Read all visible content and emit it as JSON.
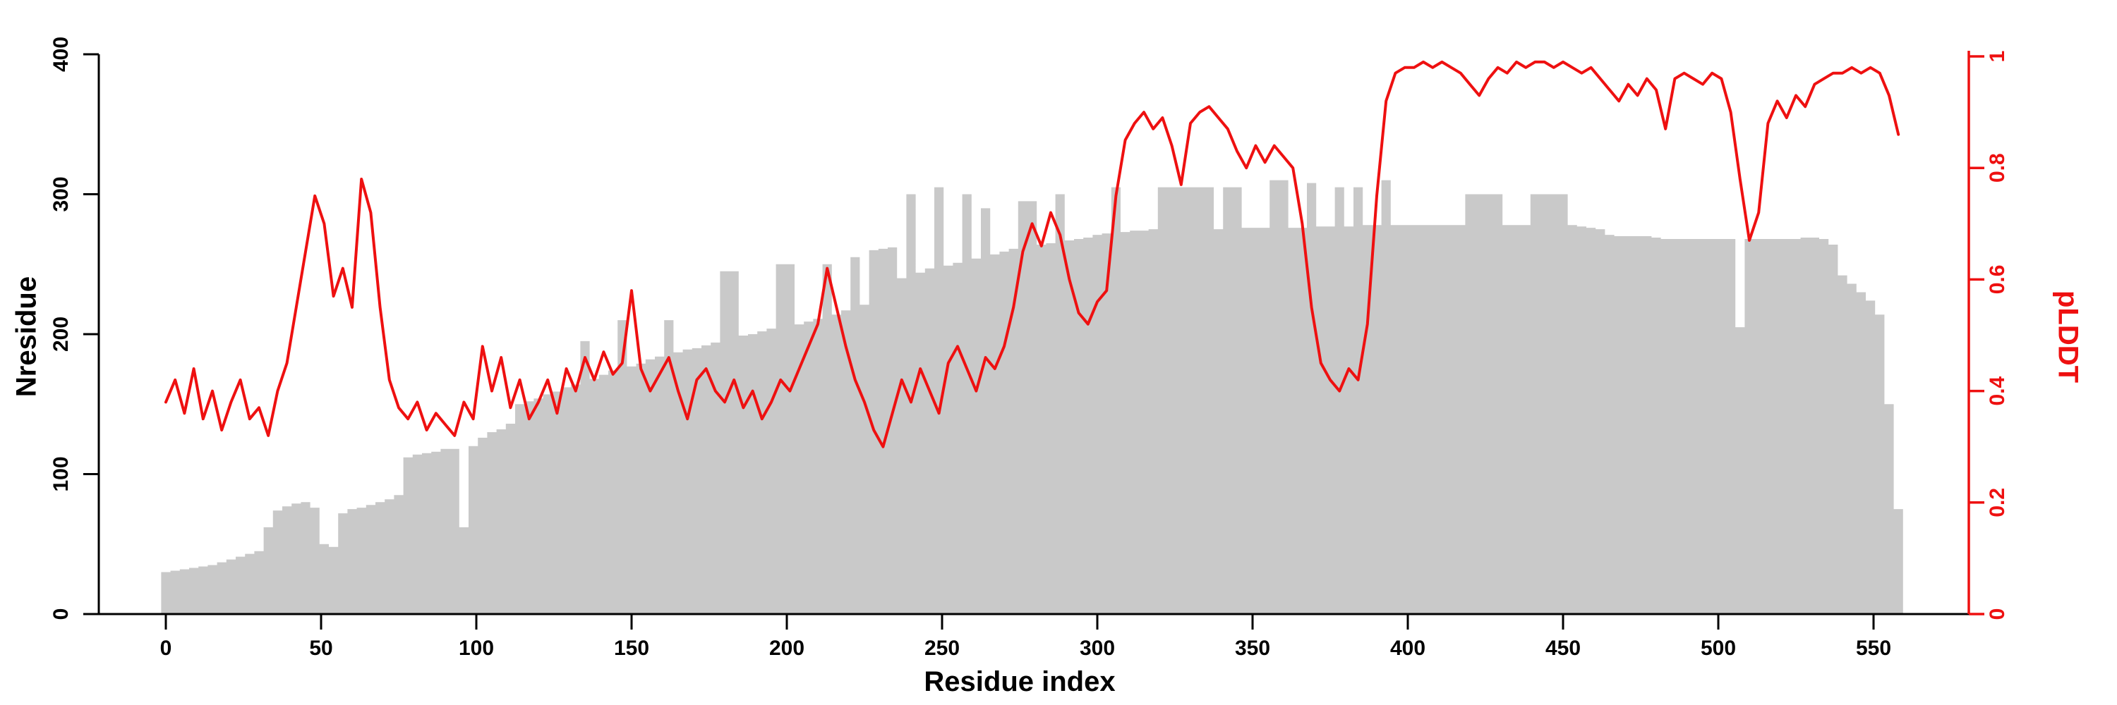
{
  "figure": {
    "background_color": "#ffffff",
    "bar_color": "#c9c9c9",
    "line_color": "#ee1010",
    "axis_color": "#000000",
    "right_axis_color": "#ee1010"
  },
  "chart_data": {
    "type": "bar+line",
    "title": "",
    "xlabel": "Residue index",
    "ylabel_left": "Nresidue",
    "ylabel_right": "pLDDT",
    "xlim": [
      0,
      558
    ],
    "ylim_left": [
      0,
      400
    ],
    "ylim_right": [
      0,
      1
    ],
    "grid": false,
    "legend": "none",
    "xticks": [
      0,
      50,
      100,
      150,
      200,
      250,
      300,
      350,
      400,
      450,
      500,
      550
    ],
    "xtick_labels": [
      "0",
      "50",
      "100",
      "150",
      "200",
      "250",
      "300",
      "350",
      "400",
      "450",
      "500",
      "550"
    ],
    "yticks_left": [
      0,
      100,
      200,
      300,
      400
    ],
    "ytick_labels_left": [
      "0",
      "100",
      "200",
      "300",
      "400"
    ],
    "yticks_right": [
      0,
      0.2,
      0.4,
      0.6,
      0.8,
      1
    ],
    "ytick_labels_right": [
      "0",
      "0.2",
      "0.4",
      "0.6",
      "0.8",
      "1"
    ],
    "x": [
      0,
      3,
      6,
      9,
      12,
      15,
      18,
      21,
      24,
      27,
      30,
      33,
      36,
      39,
      42,
      45,
      48,
      51,
      54,
      57,
      60,
      63,
      66,
      69,
      72,
      75,
      78,
      81,
      84,
      87,
      90,
      93,
      96,
      99,
      102,
      105,
      108,
      111,
      114,
      117,
      120,
      123,
      126,
      129,
      132,
      135,
      138,
      141,
      144,
      147,
      150,
      153,
      156,
      159,
      162,
      165,
      168,
      171,
      174,
      177,
      180,
      183,
      186,
      189,
      192,
      195,
      198,
      201,
      204,
      207,
      210,
      213,
      216,
      219,
      222,
      225,
      228,
      231,
      234,
      237,
      240,
      243,
      246,
      249,
      252,
      255,
      258,
      261,
      264,
      267,
      270,
      273,
      276,
      279,
      282,
      285,
      288,
      291,
      294,
      297,
      300,
      303,
      306,
      309,
      312,
      315,
      318,
      321,
      324,
      327,
      330,
      333,
      336,
      339,
      342,
      345,
      348,
      351,
      354,
      357,
      360,
      363,
      366,
      369,
      372,
      375,
      378,
      381,
      384,
      387,
      390,
      393,
      396,
      399,
      402,
      405,
      408,
      411,
      414,
      417,
      420,
      423,
      426,
      429,
      432,
      435,
      438,
      441,
      444,
      447,
      450,
      453,
      456,
      459,
      462,
      465,
      468,
      471,
      474,
      477,
      480,
      483,
      486,
      489,
      492,
      495,
      498,
      501,
      504,
      507,
      510,
      513,
      516,
      519,
      522,
      525,
      528,
      531,
      534,
      537,
      540,
      543,
      546,
      549,
      552,
      555,
      558
    ],
    "series": [
      {
        "name": "Nresidue",
        "type": "bar",
        "axis": "left",
        "color": "#c9c9c9",
        "values": [
          30,
          31,
          32,
          33,
          34,
          35,
          37,
          39,
          41,
          43,
          45,
          62,
          74,
          77,
          79,
          80,
          76,
          50,
          48,
          72,
          75,
          76,
          78,
          80,
          82,
          85,
          112,
          114,
          115,
          116,
          118,
          118,
          62,
          120,
          126,
          130,
          132,
          136,
          150,
          152,
          154,
          157,
          159,
          162,
          164,
          195,
          168,
          171,
          174,
          210,
          177,
          179,
          182,
          184,
          210,
          187,
          189,
          190,
          192,
          194,
          245,
          245,
          199,
          200,
          202,
          204,
          250,
          250,
          207,
          209,
          211,
          250,
          214,
          217,
          255,
          221,
          260,
          261,
          262,
          240,
          300,
          244,
          247,
          305,
          249,
          251,
          300,
          254,
          290,
          257,
          259,
          261,
          295,
          295,
          264,
          265,
          300,
          267,
          268,
          269,
          271,
          272,
          305,
          273,
          274,
          274,
          275,
          305,
          305,
          305,
          305,
          305,
          305,
          275,
          305,
          305,
          276,
          276,
          276,
          310,
          310,
          276,
          276,
          308,
          277,
          277,
          305,
          277,
          305,
          278,
          278,
          310,
          278,
          278,
          278,
          278,
          278,
          278,
          278,
          278,
          300,
          300,
          300,
          300,
          278,
          278,
          278,
          300,
          300,
          300,
          300,
          278,
          277,
          276,
          275,
          271,
          270,
          270,
          270,
          270,
          269,
          268,
          268,
          268,
          268,
          268,
          268,
          268,
          268,
          205,
          268,
          268,
          268,
          268,
          268,
          268,
          269,
          269,
          268,
          264,
          242,
          236,
          230,
          224,
          214,
          150,
          75
        ]
      },
      {
        "name": "pLDDT",
        "type": "line",
        "axis": "right",
        "color": "#ee1010",
        "values": [
          0.38,
          0.42,
          0.36,
          0.44,
          0.35,
          0.4,
          0.33,
          0.38,
          0.42,
          0.35,
          0.37,
          0.32,
          0.4,
          0.45,
          0.55,
          0.65,
          0.75,
          0.7,
          0.57,
          0.62,
          0.55,
          0.78,
          0.72,
          0.55,
          0.42,
          0.37,
          0.35,
          0.38,
          0.33,
          0.36,
          0.34,
          0.32,
          0.38,
          0.35,
          0.48,
          0.4,
          0.46,
          0.37,
          0.42,
          0.35,
          0.38,
          0.42,
          0.36,
          0.44,
          0.4,
          0.46,
          0.42,
          0.47,
          0.43,
          0.45,
          0.58,
          0.44,
          0.4,
          0.43,
          0.46,
          0.4,
          0.35,
          0.42,
          0.44,
          0.4,
          0.38,
          0.42,
          0.37,
          0.4,
          0.35,
          0.38,
          0.42,
          0.4,
          0.44,
          0.48,
          0.52,
          0.62,
          0.55,
          0.48,
          0.42,
          0.38,
          0.33,
          0.3,
          0.36,
          0.42,
          0.38,
          0.44,
          0.4,
          0.36,
          0.45,
          0.48,
          0.44,
          0.4,
          0.46,
          0.44,
          0.48,
          0.55,
          0.65,
          0.7,
          0.66,
          0.72,
          0.68,
          0.6,
          0.54,
          0.52,
          0.56,
          0.58,
          0.75,
          0.85,
          0.88,
          0.9,
          0.87,
          0.89,
          0.84,
          0.77,
          0.88,
          0.9,
          0.91,
          0.89,
          0.87,
          0.83,
          0.8,
          0.84,
          0.81,
          0.84,
          0.82,
          0.8,
          0.7,
          0.55,
          0.45,
          0.42,
          0.4,
          0.44,
          0.42,
          0.52,
          0.75,
          0.92,
          0.97,
          0.98,
          0.98,
          0.99,
          0.98,
          0.99,
          0.98,
          0.97,
          0.95,
          0.93,
          0.96,
          0.98,
          0.97,
          0.99,
          0.98,
          0.99,
          0.99,
          0.98,
          0.99,
          0.98,
          0.97,
          0.98,
          0.96,
          0.94,
          0.92,
          0.95,
          0.93,
          0.96,
          0.94,
          0.87,
          0.96,
          0.97,
          0.96,
          0.95,
          0.97,
          0.96,
          0.9,
          0.78,
          0.67,
          0.72,
          0.88,
          0.92,
          0.89,
          0.93,
          0.91,
          0.95,
          0.96,
          0.97,
          0.97,
          0.98,
          0.97,
          0.98,
          0.97,
          0.93,
          0.86
        ]
      }
    ]
  }
}
